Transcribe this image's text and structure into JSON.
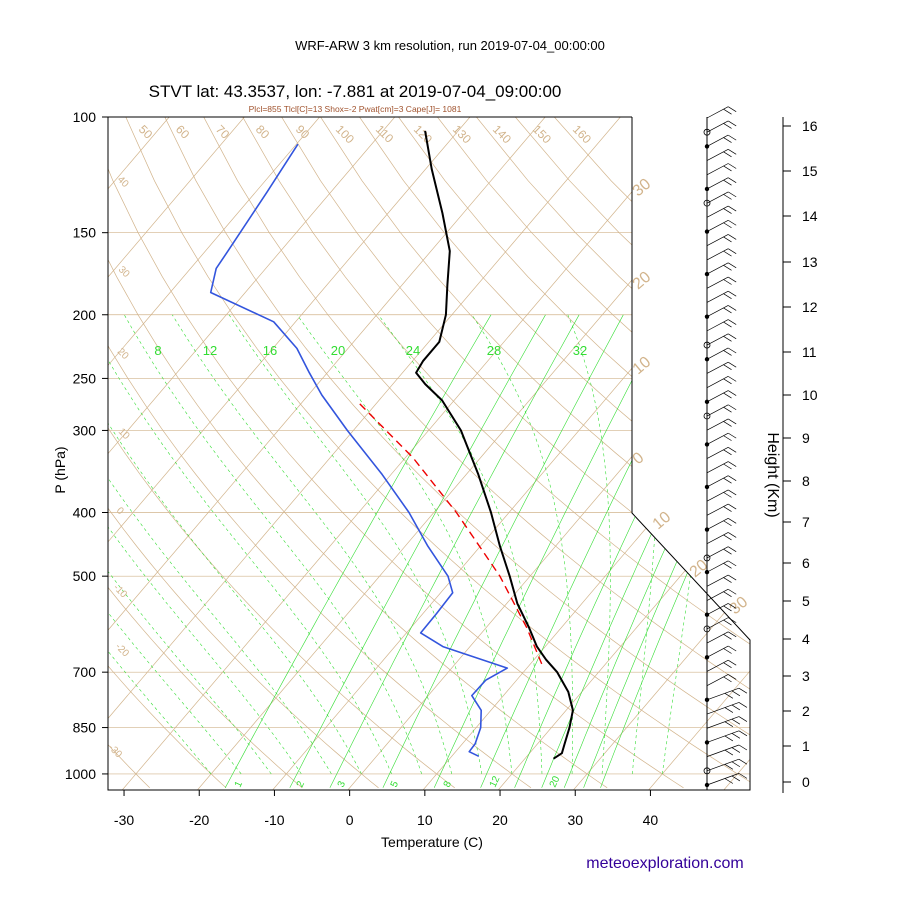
{
  "header": {
    "run_title": "WRF-ARW 3 km resolution, run 2019-07-04_00:00:00",
    "station_title": "STVT lat: 43.3537, lon: -7.881 at 2019-07-04_09:00:00",
    "indices": "Plcl=855 Tlcl[C]=13 Shox=-2 Pwat[cm]=3 Cape[J]= 1081",
    "credit": "meteoexploration.com"
  },
  "colors": {
    "temperature": "#000000",
    "dewpoint": "#3355dd",
    "parcel": "#ee0000",
    "background_lines": "#d2b48c",
    "mixing_ratio": "#33dd33",
    "credit": "#330099"
  },
  "chart_data": {
    "type": "line",
    "subtype": "skew-T log-P",
    "xlabel": "Temperature (C)",
    "ylabel": "P (hPa)",
    "right_axis_label": "Height (Km)",
    "xlim": [
      -35,
      47
    ],
    "ylim": [
      1050,
      100
    ],
    "pressure_ticks": [
      "100",
      "150",
      "200",
      "250",
      "300",
      "400",
      "500",
      "700",
      "850",
      "1000"
    ],
    "temperature_ticks": [
      "-30",
      "-20",
      "-10",
      "0",
      "10",
      "20",
      "30",
      "40"
    ],
    "height_ticks": [
      "0",
      "1",
      "2",
      "3",
      "4",
      "5",
      "6",
      "7",
      "8",
      "9",
      "10",
      "11",
      "12",
      "13",
      "14",
      "15",
      "16"
    ],
    "dry_adiabat_labels": [
      "-30",
      "-20",
      "-10",
      "0",
      "10",
      "20",
      "30",
      "40",
      "50",
      "60",
      "70",
      "80",
      "90",
      "100",
      "110",
      "120",
      "130",
      "140",
      "150",
      "160"
    ],
    "moist_adiabat_labels": [
      "30",
      "20",
      "10",
      "0",
      "10",
      "20",
      "30"
    ],
    "mixing_ratio_top_labels": [
      "8",
      "12",
      "16",
      "20",
      "24",
      "28",
      "32"
    ],
    "mixing_ratio_bottom_labels": [
      "1",
      "2",
      "3",
      "5",
      "8",
      "12",
      "20"
    ],
    "series": [
      {
        "role": "temperature",
        "points": [
          {
            "p": 948,
            "t": 23.8
          },
          {
            "p": 930,
            "t": 24.3
          },
          {
            "p": 900,
            "t": 23.6
          },
          {
            "p": 850,
            "t": 22.4
          },
          {
            "p": 800,
            "t": 20.9
          },
          {
            "p": 750,
            "t": 18.2
          },
          {
            "p": 700,
            "t": 14.5
          },
          {
            "p": 670,
            "t": 11.6
          },
          {
            "p": 640,
            "t": 8.9
          },
          {
            "p": 600,
            "t": 5.8
          },
          {
            "p": 550,
            "t": 1.4
          },
          {
            "p": 500,
            "t": -2.7
          },
          {
            "p": 450,
            "t": -7.4
          },
          {
            "p": 400,
            "t": -12.4
          },
          {
            "p": 350,
            "t": -18.4
          },
          {
            "p": 300,
            "t": -25.7
          },
          {
            "p": 270,
            "t": -31.6
          },
          {
            "p": 255,
            "t": -35.7
          },
          {
            "p": 245,
            "t": -38.2
          },
          {
            "p": 235,
            "t": -38.6
          },
          {
            "p": 220,
            "t": -38.6
          },
          {
            "p": 200,
            "t": -40.8
          },
          {
            "p": 180,
            "t": -44.0
          },
          {
            "p": 160,
            "t": -47.5
          },
          {
            "p": 140,
            "t": -52.8
          },
          {
            "p": 120,
            "t": -59.2
          },
          {
            "p": 105,
            "t": -64.4
          }
        ]
      },
      {
        "role": "dewpoint",
        "points": [
          {
            "p": 940,
            "t": 13.6
          },
          {
            "p": 925,
            "t": 11.8
          },
          {
            "p": 900,
            "t": 11.7
          },
          {
            "p": 850,
            "t": 10.6
          },
          {
            "p": 800,
            "t": 8.7
          },
          {
            "p": 760,
            "t": 5.8
          },
          {
            "p": 720,
            "t": 5.9
          },
          {
            "p": 690,
            "t": 7.4
          },
          {
            "p": 640,
            "t": -3.6
          },
          {
            "p": 610,
            "t": -8.1
          },
          {
            "p": 570,
            "t": -8.2
          },
          {
            "p": 530,
            "t": -8.4
          },
          {
            "p": 500,
            "t": -10.9
          },
          {
            "p": 450,
            "t": -17.0
          },
          {
            "p": 400,
            "t": -23.3
          },
          {
            "p": 350,
            "t": -31.2
          },
          {
            "p": 300,
            "t": -40.8
          },
          {
            "p": 265,
            "t": -48.2
          },
          {
            "p": 245,
            "t": -52.4
          },
          {
            "p": 225,
            "t": -56.8
          },
          {
            "p": 205,
            "t": -62.9
          },
          {
            "p": 185,
            "t": -74.6
          },
          {
            "p": 170,
            "t": -76.6
          },
          {
            "p": 160,
            "t": -77.0
          },
          {
            "p": 130,
            "t": -78.5
          },
          {
            "p": 110,
            "t": -79.8
          }
        ]
      },
      {
        "role": "parcel",
        "points": [
          {
            "p": 680,
            "t": 11.5
          },
          {
            "p": 600,
            "t": 5.5
          },
          {
            "p": 500,
            "t": -4.0
          },
          {
            "p": 400,
            "t": -17.0
          },
          {
            "p": 330,
            "t": -29.0
          },
          {
            "p": 270,
            "t": -43.0
          }
        ]
      }
    ],
    "wind_barbs_count": 48
  }
}
